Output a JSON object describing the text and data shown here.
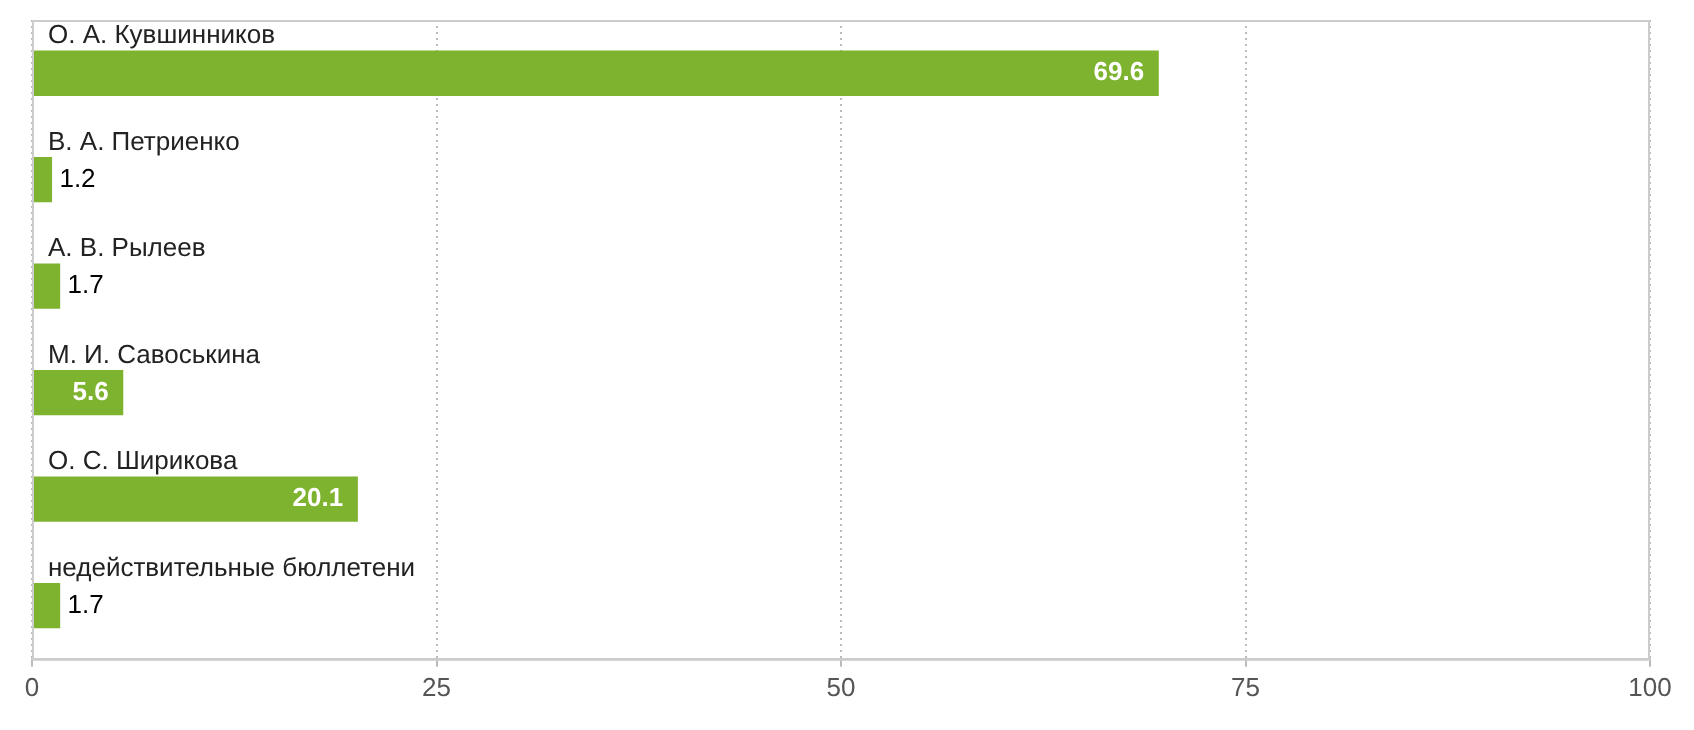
{
  "chart_data": {
    "type": "bar",
    "orientation": "horizontal",
    "categories": [
      "О. А. Кувшинников",
      "В. А. Петриенко",
      "А. В. Рылеев",
      "М. И. Савоськина",
      "О. С. Ширикова",
      "недействительные бюллетени"
    ],
    "values": [
      69.6,
      1.2,
      1.7,
      5.6,
      20.1,
      1.7
    ],
    "color": "#7db32e",
    "xlim": [
      0,
      100
    ],
    "xticks": [
      0,
      25,
      50,
      75,
      100
    ],
    "grid": "x",
    "data_labels": true,
    "legend": false
  }
}
